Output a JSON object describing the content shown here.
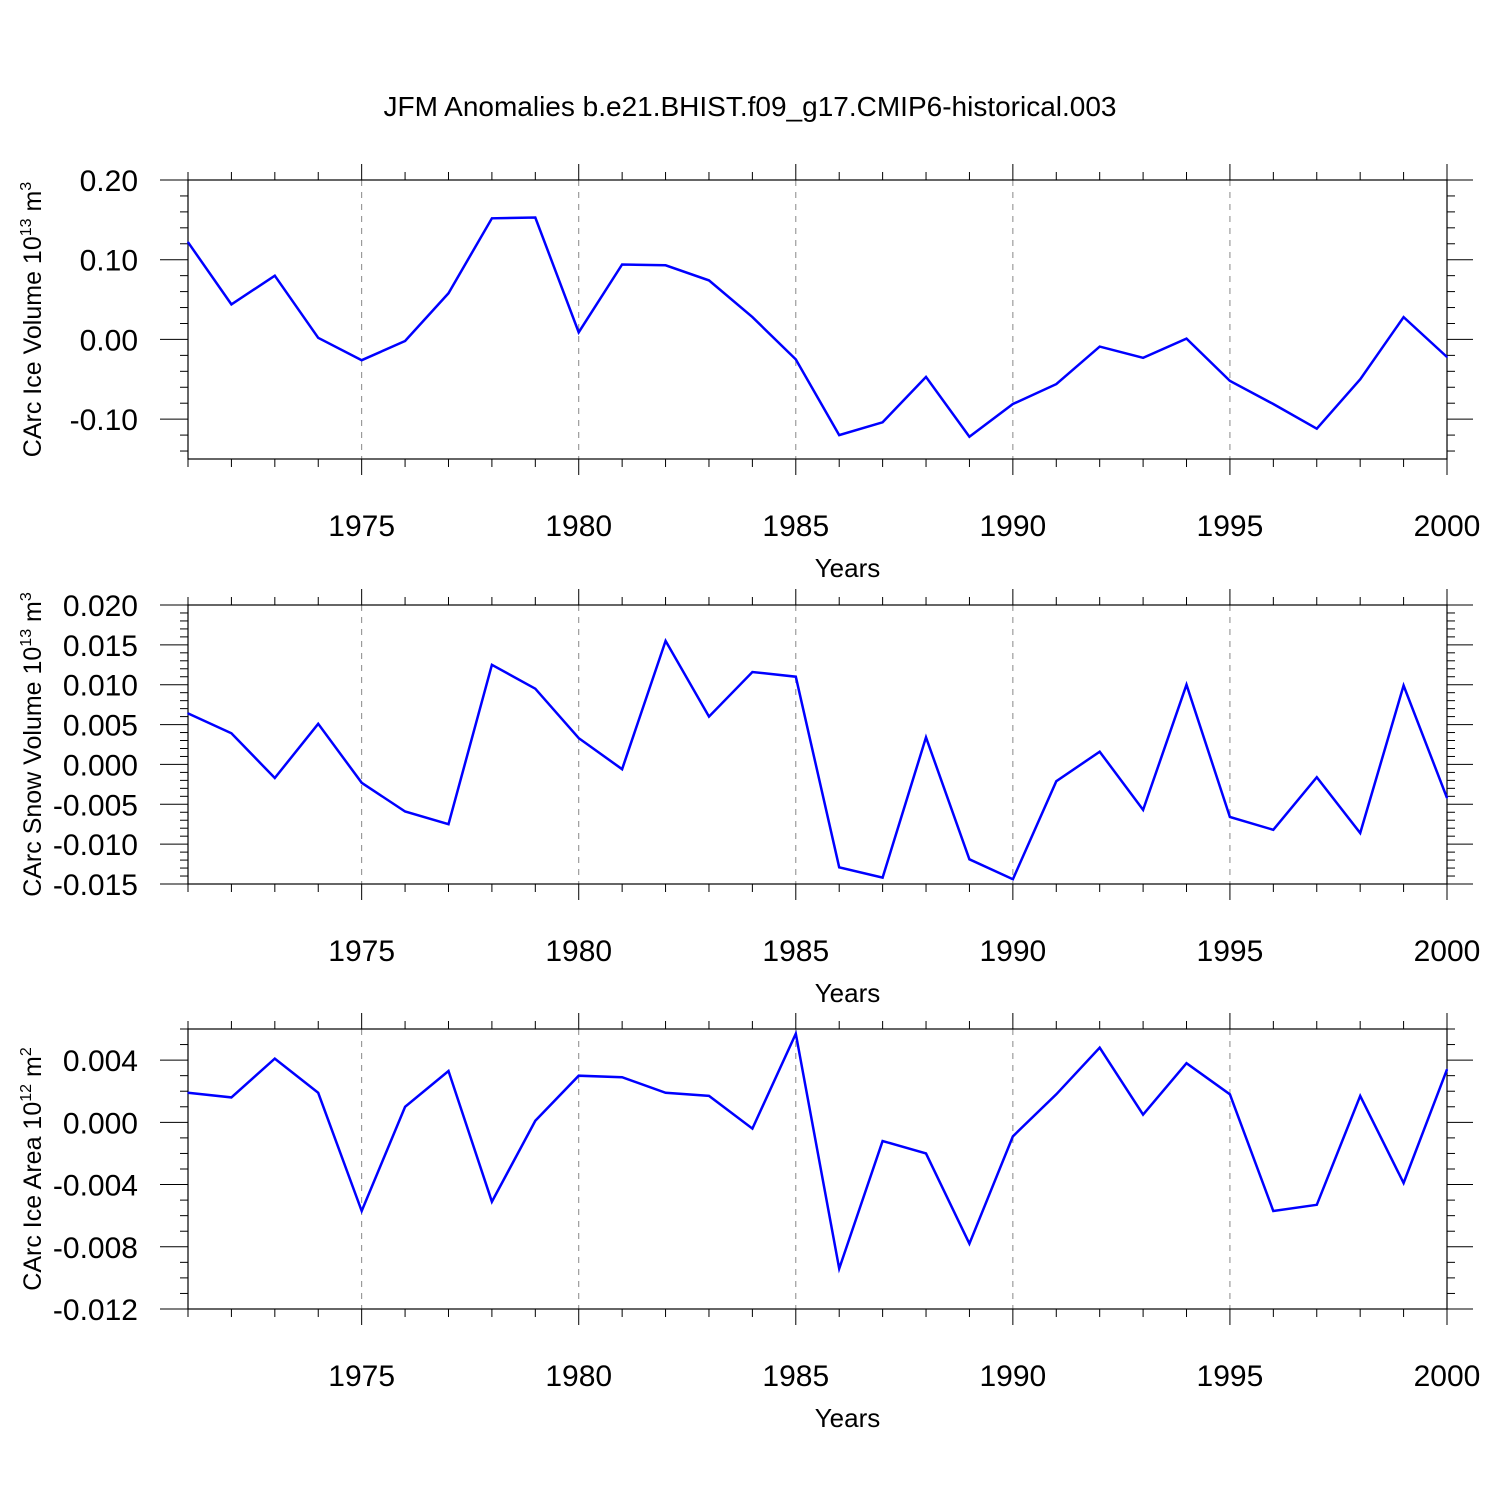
{
  "title": "JFM Anomalies b.e21.BHIST.f09_g17.CMIP6-historical.003",
  "colors": {
    "line": "#0000ff",
    "axis": "#000000",
    "grid": "#888888",
    "background": "#ffffff"
  },
  "chart_data": [
    {
      "type": "line",
      "title": "JFM Anomalies b.e21.BHIST.f09_g17.CMIP6-historical.003",
      "xlabel": "Years",
      "ylabel": "CArc Ice Volume 10",
      "ylabel_sup": "13",
      "ylabel_unit": "m",
      "ylabel_unit_sup": "3",
      "xlim": [
        1971,
        2000
      ],
      "ylim": [
        -0.15,
        0.2
      ],
      "xticks": [
        1975,
        1980,
        1985,
        1990,
        1995,
        2000
      ],
      "xtick_labels": [
        "1975",
        "1980",
        "1985",
        "1990",
        "1995",
        "2000"
      ],
      "yticks": [
        0.2,
        0.1,
        0.0,
        -0.1
      ],
      "ytick_labels": [
        "0.20",
        "0.10",
        "0.00",
        "-0.10"
      ],
      "yminor_step": 0.02,
      "grid": "vertical dashed at major x ticks",
      "series": [
        {
          "name": "CArc Ice Volume",
          "x": [
            1971,
            1972,
            1973,
            1974,
            1975,
            1976,
            1977,
            1978,
            1979,
            1980,
            1981,
            1982,
            1983,
            1984,
            1985,
            1986,
            1987,
            1988,
            1989,
            1990,
            1991,
            1992,
            1993,
            1994,
            1995,
            1996,
            1997,
            1998,
            1999,
            2000
          ],
          "values": [
            0.122,
            0.044,
            0.08,
            0.002,
            -0.026,
            -0.002,
            0.058,
            0.152,
            0.153,
            0.009,
            0.094,
            0.093,
            0.074,
            0.028,
            -0.025,
            -0.12,
            -0.104,
            -0.047,
            -0.122,
            -0.081,
            -0.056,
            -0.009,
            -0.023,
            0.001,
            -0.052,
            -0.081,
            -0.112,
            -0.05,
            0.028,
            -0.022
          ]
        }
      ]
    },
    {
      "type": "line",
      "xlabel": "Years",
      "ylabel": "CArc Snow Volume 10",
      "ylabel_sup": "13",
      "ylabel_unit": "m",
      "ylabel_unit_sup": "3",
      "xlim": [
        1971,
        2000
      ],
      "ylim": [
        -0.015,
        0.02
      ],
      "xticks": [
        1975,
        1980,
        1985,
        1990,
        1995,
        2000
      ],
      "xtick_labels": [
        "1975",
        "1980",
        "1985",
        "1990",
        "1995",
        "2000"
      ],
      "yticks": [
        0.02,
        0.015,
        0.01,
        0.005,
        0.0,
        -0.005,
        -0.01,
        -0.015
      ],
      "ytick_labels": [
        "0.020",
        "0.015",
        "0.010",
        "0.005",
        "0.000",
        "-0.005",
        "-0.010",
        "-0.015"
      ],
      "yminor_step": 0.001,
      "grid": "vertical dashed at major x ticks",
      "series": [
        {
          "name": "CArc Snow Volume",
          "x": [
            1971,
            1972,
            1973,
            1974,
            1975,
            1976,
            1977,
            1978,
            1979,
            1980,
            1981,
            1982,
            1983,
            1984,
            1985,
            1986,
            1987,
            1988,
            1989,
            1990,
            1991,
            1992,
            1993,
            1994,
            1995,
            1996,
            1997,
            1998,
            1999,
            2000
          ],
          "values": [
            0.0064,
            0.0039,
            -0.0017,
            0.0051,
            -0.0023,
            -0.0059,
            -0.0075,
            0.0125,
            0.0095,
            0.0033,
            -0.0006,
            0.0155,
            0.006,
            0.0116,
            0.011,
            -0.0129,
            -0.0142,
            0.0034,
            -0.0119,
            -0.0144,
            -0.0021,
            0.0016,
            -0.0057,
            0.01,
            -0.0066,
            -0.0082,
            -0.0016,
            -0.0086,
            0.0099,
            -0.0042
          ]
        }
      ]
    },
    {
      "type": "line",
      "xlabel": "Years",
      "ylabel": "CArc Ice Area 10",
      "ylabel_sup": "12",
      "ylabel_unit": "m",
      "ylabel_unit_sup": "2",
      "xlim": [
        1971,
        2000
      ],
      "ylim": [
        -0.012,
        0.006
      ],
      "xticks": [
        1975,
        1980,
        1985,
        1990,
        1995,
        2000
      ],
      "xtick_labels": [
        "1975",
        "1980",
        "1985",
        "1990",
        "1995",
        "2000"
      ],
      "yticks": [
        0.004,
        0.0,
        -0.004,
        -0.008,
        -0.012
      ],
      "ytick_labels": [
        "0.004",
        "0.000",
        "-0.004",
        "-0.008",
        "-0.012"
      ],
      "yminor_step": 0.001,
      "grid": "vertical dashed at major x ticks",
      "series": [
        {
          "name": "CArc Ice Area",
          "x": [
            1971,
            1972,
            1973,
            1974,
            1975,
            1976,
            1977,
            1978,
            1979,
            1980,
            1981,
            1982,
            1983,
            1984,
            1985,
            1986,
            1987,
            1988,
            1989,
            1990,
            1991,
            1992,
            1993,
            1994,
            1995,
            1996,
            1997,
            1998,
            1999,
            2000
          ],
          "values": [
            0.0019,
            0.0016,
            0.0041,
            0.0019,
            -0.0057,
            0.001,
            0.0033,
            -0.0051,
            0.0001,
            0.003,
            0.0029,
            0.0019,
            0.0017,
            -0.0004,
            0.0057,
            -0.0094,
            -0.0012,
            -0.002,
            -0.0078,
            -0.0009,
            0.0018,
            0.0048,
            0.0005,
            0.0038,
            0.0018,
            -0.0057,
            -0.0053,
            0.0017,
            -0.0039,
            0.0034
          ]
        }
      ]
    }
  ]
}
